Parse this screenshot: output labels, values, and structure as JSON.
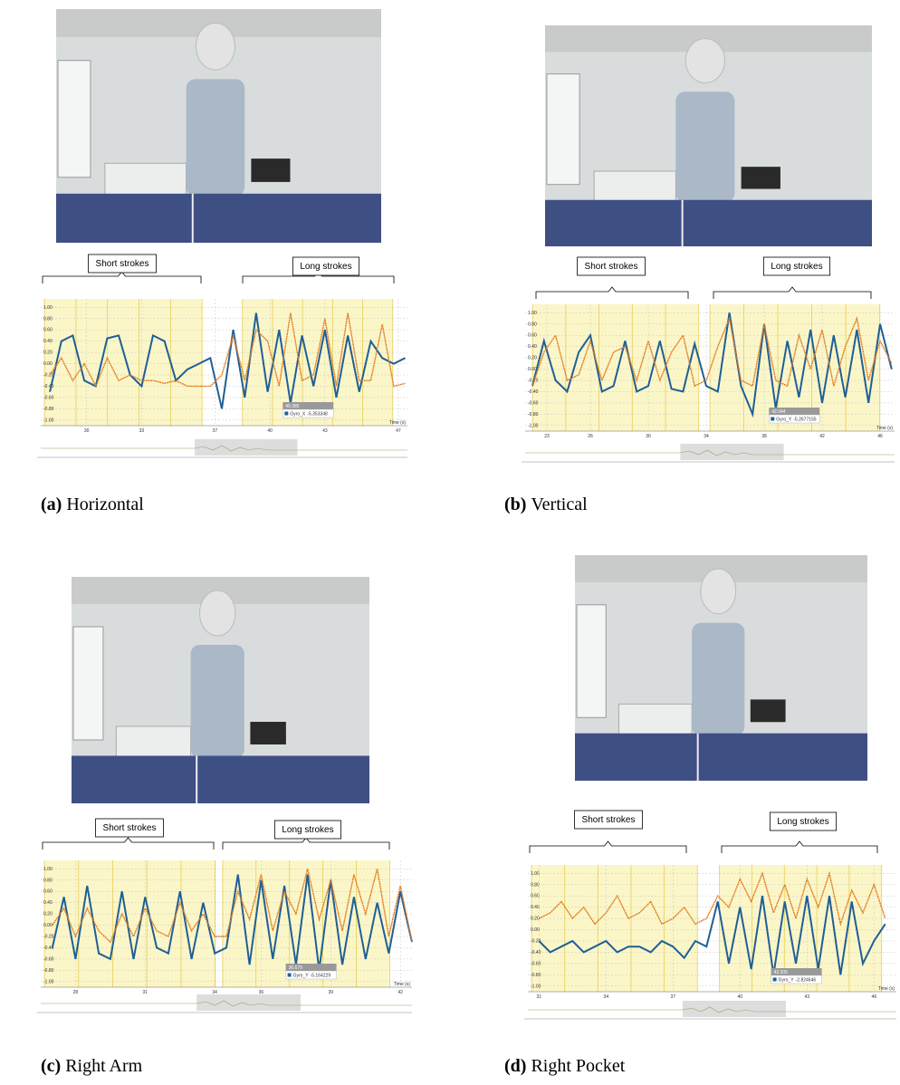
{
  "panels": [
    {
      "caption_label": "(a)",
      "caption": "Horizontal",
      "short_label": "Short strokes",
      "long_label": "Long strokes",
      "chart": {
        "type": "line",
        "xlabel": "Time (s)",
        "x": [
          28,
          28.625,
          29.25,
          29.875,
          30.5,
          31.125,
          31.75,
          32.375,
          33,
          33.625,
          34.25,
          34.875,
          35.5,
          36.125,
          36.75,
          37.375,
          38,
          38.625,
          39.25,
          39.875,
          40.5,
          41.125,
          41.75,
          42.375,
          43,
          43.625,
          44.25,
          44.875,
          45.5,
          46.125,
          46.75,
          47.375
        ],
        "xlim": [
          27.5,
          47.5
        ],
        "xticks": [
          30,
          33,
          37,
          40,
          43,
          47
        ],
        "ylim": [
          -1.1,
          1.15
        ],
        "yticks": [
          {
            "value": 1,
            "label": "1.00"
          },
          {
            "value": 0.8,
            "label": "0.80"
          },
          {
            "value": 0.6,
            "label": "0.60"
          },
          {
            "value": 0.4,
            "label": "0.40"
          },
          {
            "value": 0.2,
            "label": "0.20"
          },
          {
            "value": 0,
            "label": "0.00"
          },
          {
            "value": -0.2,
            "label": "-0.20"
          },
          {
            "value": -0.4,
            "label": "-0.40"
          },
          {
            "value": -0.6,
            "label": "-0.60"
          },
          {
            "value": -0.8,
            "label": "-0.80"
          },
          {
            "value": -1,
            "label": "-1.00"
          }
        ],
        "series": [
          {
            "color": "#1f5f96",
            "values": [
              -0.5,
              0.4,
              0.5,
              -0.3,
              -0.4,
              0.45,
              0.5,
              -0.2,
              -0.4,
              0.5,
              0.4,
              -0.3,
              -0.1,
              0.0,
              0.1,
              -0.8,
              0.6,
              -0.6,
              0.9,
              -0.5,
              0.6,
              -0.7,
              0.5,
              -0.4,
              0.6,
              -0.6,
              0.5,
              -0.5,
              0.4,
              0.1,
              0.0,
              0.1
            ]
          },
          {
            "color": "#e07b1f",
            "values": [
              -0.2,
              0.1,
              -0.3,
              0.0,
              -0.4,
              0.1,
              -0.3,
              -0.2,
              -0.3,
              -0.3,
              -0.35,
              -0.3,
              -0.4,
              -0.4,
              -0.4,
              -0.2,
              0.5,
              -0.3,
              0.6,
              0.4,
              -0.4,
              0.9,
              -0.3,
              -0.2,
              0.8,
              -0.4,
              0.9,
              -0.3,
              -0.3,
              0.7,
              -0.4,
              -0.35
            ]
          }
        ],
        "tooltip": {
          "time": "40.385",
          "name": "Gyro_X",
          "value": "-5.353348"
        }
      }
    },
    {
      "caption_label": "(b)",
      "caption": "Vertical",
      "short_label": "Short strokes",
      "long_label": "Long strokes",
      "chart": {
        "type": "line",
        "xlabel": "Time (s)",
        "x": [
          22,
          22.8,
          23.6,
          24.4,
          25.2,
          26,
          26.8,
          27.6,
          28.4,
          29.2,
          30,
          30.8,
          31.6,
          32.4,
          33.2,
          34,
          34.8,
          35.6,
          36.4,
          37.2,
          38,
          38.8,
          39.6,
          40.4,
          41.2,
          42,
          42.8,
          43.6,
          44.4,
          45.2,
          46,
          46.8
        ],
        "xlim": [
          21.5,
          47
        ],
        "xticks": [
          23,
          26,
          30,
          34,
          38,
          42,
          46
        ],
        "ylim": [
          -1.1,
          1.15
        ],
        "yticks": [
          {
            "value": 1,
            "label": "1.00"
          },
          {
            "value": 0.8,
            "label": "0.80"
          },
          {
            "value": 0.6,
            "label": "0.60"
          },
          {
            "value": 0.4,
            "label": "0.40"
          },
          {
            "value": 0.2,
            "label": "0.20"
          },
          {
            "value": 0,
            "label": "0.00"
          },
          {
            "value": -0.2,
            "label": "-0.20"
          },
          {
            "value": -0.4,
            "label": "-0.40"
          },
          {
            "value": -0.6,
            "label": "-0.60"
          },
          {
            "value": -0.8,
            "label": "-0.80"
          },
          {
            "value": -1,
            "label": "-1.00"
          }
        ],
        "series": [
          {
            "color": "#1f5f96",
            "values": [
              -0.3,
              0.5,
              -0.2,
              -0.4,
              0.3,
              0.6,
              -0.4,
              -0.3,
              0.5,
              -0.4,
              -0.3,
              0.5,
              -0.35,
              -0.4,
              0.45,
              -0.3,
              -0.4,
              1.0,
              -0.3,
              -0.8,
              0.8,
              -0.7,
              0.5,
              -0.5,
              0.7,
              -0.6,
              0.6,
              -0.5,
              0.7,
              -0.6,
              0.8,
              0.0
            ]
          },
          {
            "color": "#e07b1f",
            "values": [
              -0.3,
              0.3,
              0.6,
              -0.2,
              -0.1,
              0.5,
              -0.2,
              0.3,
              0.4,
              -0.2,
              0.5,
              -0.2,
              0.3,
              0.6,
              -0.3,
              -0.2,
              0.4,
              0.9,
              -0.2,
              -0.3,
              0.8,
              -0.2,
              -0.3,
              0.6,
              0.0,
              0.7,
              -0.3,
              0.4,
              0.9,
              -0.2,
              0.5,
              0.1
            ]
          }
        ],
        "tooltip": {
          "time": "42.044",
          "name": "Gyro_Y",
          "value": "-5.2677155"
        }
      }
    },
    {
      "caption_label": "(c)",
      "caption": "Right Arm",
      "short_label": "Short strokes",
      "long_label": "Long strokes",
      "chart": {
        "type": "line",
        "xlabel": "Time (s)",
        "x": [
          27,
          27.5,
          28,
          28.5,
          29,
          29.5,
          30,
          30.5,
          31,
          31.5,
          32,
          32.5,
          33,
          33.5,
          34,
          34.5,
          35,
          35.5,
          36,
          36.5,
          37,
          37.5,
          38,
          38.5,
          39,
          39.5,
          40,
          40.5,
          41,
          41.5,
          42,
          42.5
        ],
        "xlim": [
          26.5,
          42.5
        ],
        "xticks": [
          28,
          31,
          34,
          36,
          39,
          42
        ],
        "ylim": [
          -1.1,
          1.15
        ],
        "yticks": [
          {
            "value": 1,
            "label": "1.00"
          },
          {
            "value": 0.8,
            "label": "0.80"
          },
          {
            "value": 0.6,
            "label": "0.60"
          },
          {
            "value": 0.4,
            "label": "0.40"
          },
          {
            "value": 0.2,
            "label": "0.20"
          },
          {
            "value": 0,
            "label": "0.00"
          },
          {
            "value": -0.2,
            "label": "-0.20"
          },
          {
            "value": -0.4,
            "label": "-0.40"
          },
          {
            "value": -0.6,
            "label": "-0.60"
          },
          {
            "value": -0.8,
            "label": "-0.80"
          },
          {
            "value": -1,
            "label": "-1.00"
          }
        ],
        "series": [
          {
            "color": "#1f5f96",
            "values": [
              -0.4,
              0.5,
              -0.6,
              0.7,
              -0.5,
              -0.6,
              0.6,
              -0.6,
              0.5,
              -0.4,
              -0.5,
              0.6,
              -0.6,
              0.4,
              -0.5,
              -0.4,
              0.9,
              -0.7,
              0.8,
              -0.6,
              0.7,
              -0.7,
              0.9,
              -0.8,
              0.8,
              -0.7,
              0.5,
              -0.6,
              0.4,
              -0.5,
              0.6,
              -0.3
            ]
          },
          {
            "color": "#e07b1f",
            "values": [
              0.0,
              0.3,
              -0.2,
              0.3,
              -0.1,
              -0.3,
              0.2,
              -0.2,
              0.3,
              -0.1,
              -0.2,
              0.4,
              -0.1,
              0.2,
              -0.2,
              -0.2,
              0.6,
              0.1,
              0.9,
              -0.1,
              0.6,
              0.2,
              1.0,
              0.1,
              0.8,
              -0.1,
              0.9,
              0.2,
              1.0,
              -0.2,
              0.7,
              -0.3
            ]
          }
        ],
        "tooltip": {
          "time": "36.679",
          "name": "Gyro_Y",
          "value": "-5.164229"
        }
      }
    },
    {
      "caption_label": "(d)",
      "caption": "Right Pocket",
      "short_label": "Short strokes",
      "long_label": "Long strokes",
      "chart": {
        "type": "line",
        "xlabel": "Time (s)",
        "x": [
          31,
          31.5,
          32,
          32.5,
          33,
          33.5,
          34,
          34.5,
          35,
          35.5,
          36,
          36.5,
          37,
          37.5,
          38,
          38.5,
          39,
          39.5,
          40,
          40.5,
          41,
          41.5,
          42,
          42.5,
          43,
          43.5,
          44,
          44.5,
          45,
          45.5,
          46,
          46.5
        ],
        "xlim": [
          30.5,
          47
        ],
        "xticks": [
          31,
          34,
          37,
          40,
          43,
          46
        ],
        "ylim": [
          -1.1,
          1.15
        ],
        "yticks": [
          {
            "value": 1,
            "label": "1.00"
          },
          {
            "value": 0.8,
            "label": "0.80"
          },
          {
            "value": 0.6,
            "label": "0.60"
          },
          {
            "value": 0.4,
            "label": "0.40"
          },
          {
            "value": 0.2,
            "label": "0.20"
          },
          {
            "value": 0,
            "label": "0.00"
          },
          {
            "value": -0.2,
            "label": "-0.20"
          },
          {
            "value": -0.4,
            "label": "-0.40"
          },
          {
            "value": -0.6,
            "label": "-0.60"
          },
          {
            "value": -0.8,
            "label": "-0.80"
          },
          {
            "value": -1,
            "label": "-1.00"
          }
        ],
        "series": [
          {
            "color": "#1f5f96",
            "values": [
              -0.2,
              -0.4,
              -0.3,
              -0.2,
              -0.4,
              -0.3,
              -0.2,
              -0.4,
              -0.3,
              -0.3,
              -0.4,
              -0.2,
              -0.3,
              -0.5,
              -0.2,
              -0.3,
              0.5,
              -0.6,
              0.4,
              -0.7,
              0.6,
              -0.8,
              0.5,
              -0.6,
              0.6,
              -0.7,
              0.6,
              -0.8,
              0.5,
              -0.6,
              -0.2,
              0.1
            ]
          },
          {
            "color": "#e07b1f",
            "values": [
              0.2,
              0.3,
              0.5,
              0.2,
              0.4,
              0.1,
              0.3,
              0.6,
              0.2,
              0.3,
              0.5,
              0.1,
              0.2,
              0.4,
              0.1,
              0.2,
              0.6,
              0.4,
              0.9,
              0.5,
              1.0,
              0.3,
              0.8,
              0.2,
              0.9,
              0.4,
              1.0,
              0.1,
              0.7,
              0.3,
              0.8,
              0.2
            ]
          }
        ],
        "tooltip": {
          "time": "43.305",
          "name": "Gyro_Y",
          "value": "-2.824646"
        }
      }
    }
  ]
}
